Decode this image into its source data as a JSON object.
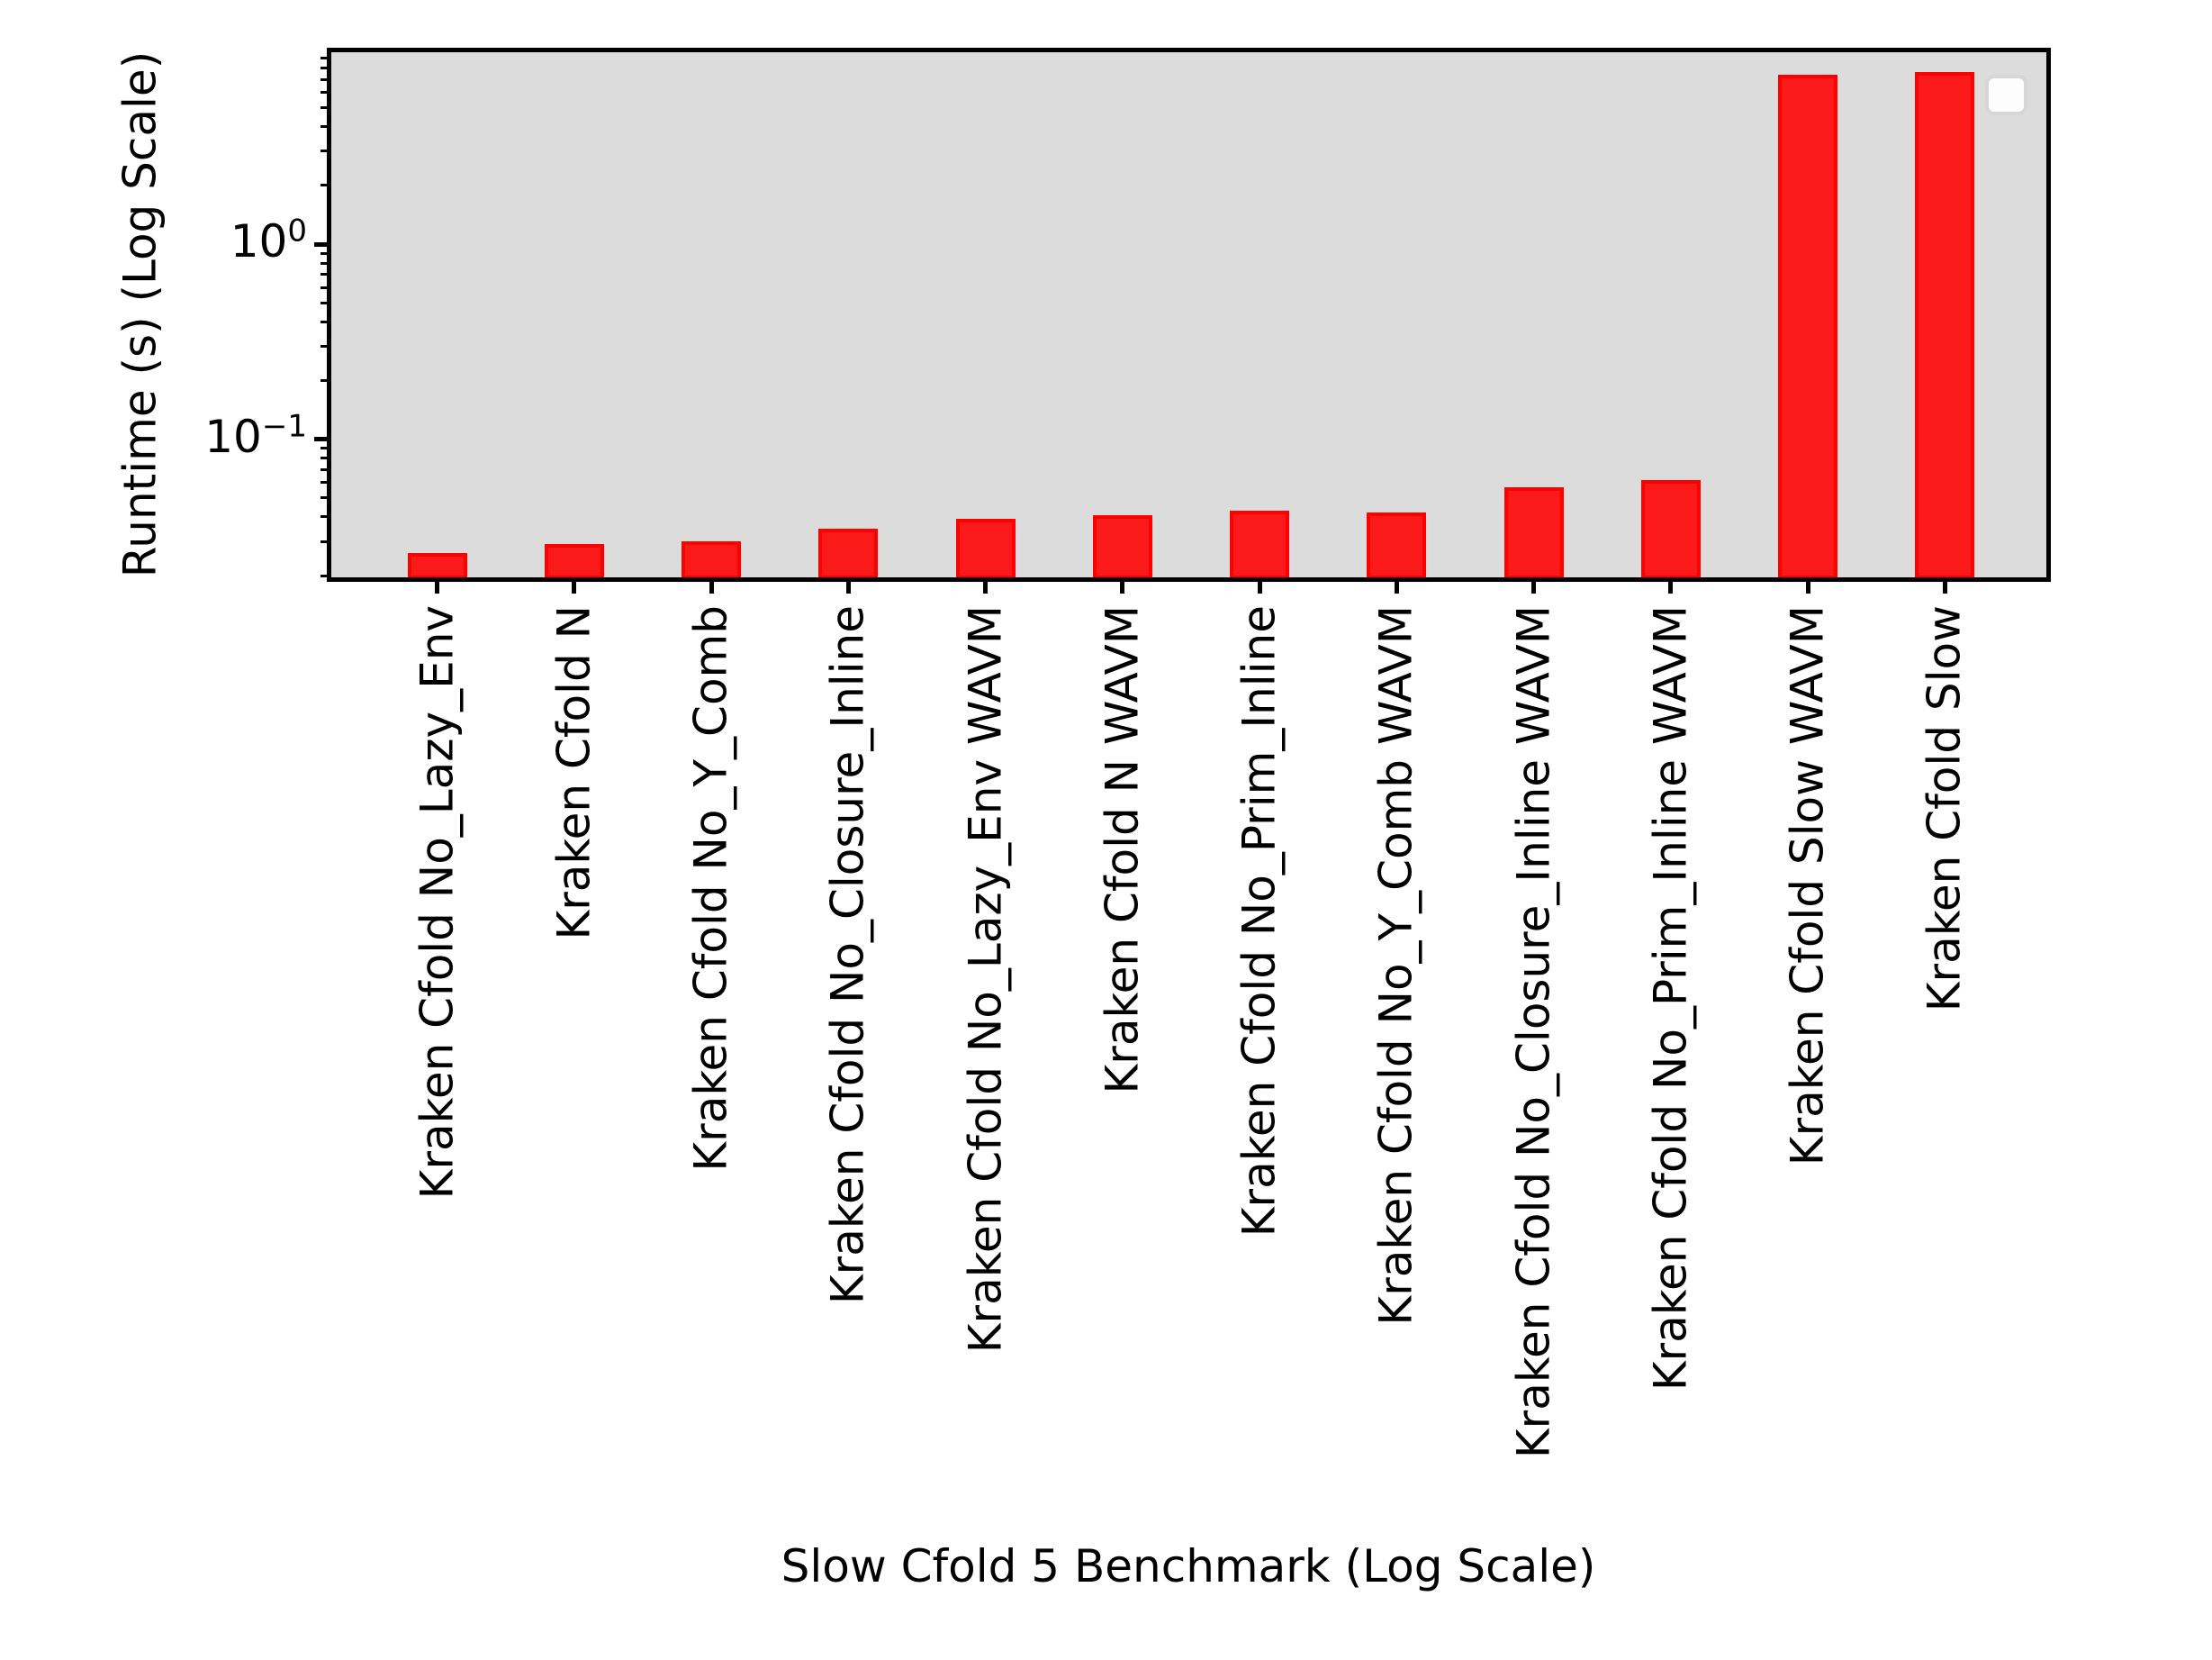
{
  "chart_data": {
    "type": "bar",
    "title": "",
    "xlabel": "Slow Cfold 5 Benchmark (Log Scale)",
    "ylabel": "Runtime (s) (Log Scale)",
    "categories": [
      "Kraken Cfold No_Lazy_Env",
      "Kraken Cfold N",
      "Kraken Cfold No_Y_Comb",
      "Kraken Cfold No_Closure_Inline",
      "Kraken Cfold No_Lazy_Env WAVM",
      "Kraken Cfold N WAVM",
      "Kraken Cfold No_Prim_Inline",
      "Kraken Cfold No_Y_Comb WAVM",
      "Kraken Cfold No_Closure_Inline WAVM",
      "Kraken Cfold No_Prim_Inline WAVM",
      "Kraken Cfold Slow WAVM",
      "Kraken Cfold Slow"
    ],
    "values": [
      0.026,
      0.029,
      0.03,
      0.035,
      0.039,
      0.041,
      0.043,
      0.042,
      0.057,
      0.062,
      7.4,
      7.6
    ],
    "y_scale": "log",
    "ylim": [
      0.0192,
      9.95
    ],
    "y_major_ticks": [
      {
        "display": "10^0",
        "exponent": 0,
        "value": 1
      },
      {
        "display": "10^-1",
        "exponent": -1,
        "value": 0.1
      }
    ],
    "grid": false,
    "legend": {
      "visible": true,
      "position": "upper right",
      "entries": []
    },
    "colors": {
      "bar_fill": "#fa1a1a",
      "bar_edge": "#ff0000",
      "plot_background": "#dcdcdc",
      "figure_background": "#ffffff",
      "axis": "#000000",
      "text": "#000000"
    }
  }
}
